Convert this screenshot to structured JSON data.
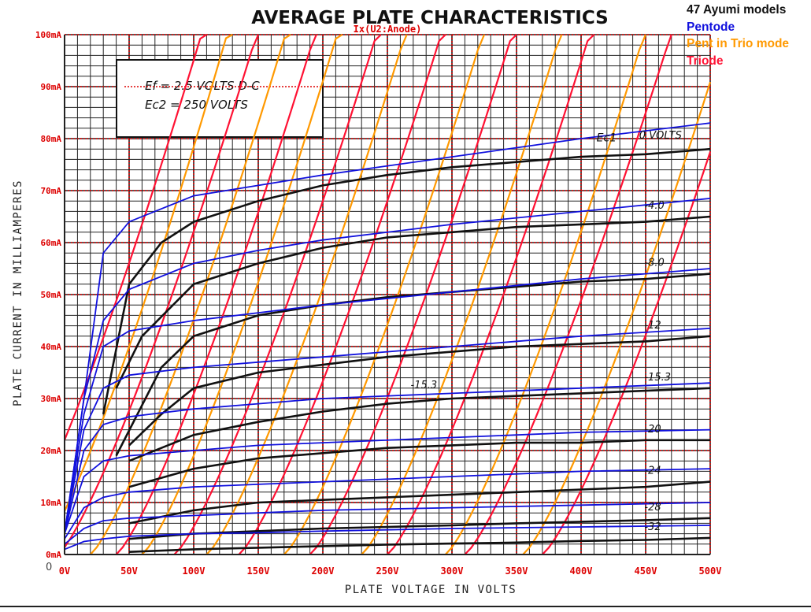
{
  "legend": {
    "title": "47 Ayumi models",
    "items": [
      {
        "label": "Pentode",
        "color": "#1111dd"
      },
      {
        "label": "Pent in Trio mode",
        "color": "#ff9900"
      },
      {
        "label": "Triode",
        "color": "#ff1133"
      }
    ]
  },
  "colors": {
    "grid": "#222222",
    "datasheet": "#111111",
    "sim_axis": "#dd0000"
  },
  "chart_data": {
    "type": "line",
    "title": "AVERAGE PLATE CHARACTERISTICS",
    "subtitle": "Ix(U2:Anode)",
    "xlabel": "PLATE VOLTAGE IN VOLTS",
    "ylabel": "PLATE CURRENT IN MILLIAMPERES",
    "xlim": [
      0,
      500
    ],
    "ylim": [
      0,
      100
    ],
    "x_ticks": [
      "0V",
      "50V",
      "100V",
      "150V",
      "200V",
      "250V",
      "300V",
      "350V",
      "400V",
      "450V",
      "500V"
    ],
    "y_ticks": [
      "0mA",
      "10mA",
      "20mA",
      "30mA",
      "40mA",
      "50mA",
      "60mA",
      "70mA",
      "80mA",
      "90mA",
      "100mA"
    ],
    "origin_label": "0",
    "conditions": [
      "Ef = 2.5 VOLTS D-C",
      "Ec2 = 250 VOLTS"
    ],
    "grid": true,
    "series": [
      {
        "name": "Ec1 = 0 VOLTS",
        "group": "datasheet",
        "label": "0 VOLTS",
        "x": [
          30,
          50,
          75,
          100,
          150,
          200,
          250,
          300,
          350,
          400,
          450,
          500
        ],
        "y": [
          27,
          52,
          60,
          64,
          68,
          71,
          73,
          74.5,
          75.5,
          76.5,
          77,
          78
        ]
      },
      {
        "name": "Ec1 = -4",
        "group": "datasheet",
        "label": "-4.0",
        "x": [
          40,
          60,
          100,
          150,
          200,
          250,
          300,
          350,
          400,
          450,
          500
        ],
        "y": [
          32,
          42,
          52,
          56,
          59,
          61,
          62,
          63,
          63.5,
          64,
          65
        ]
      },
      {
        "name": "Ec1 = -8",
        "group": "datasheet",
        "label": "-8.0",
        "x": [
          40,
          75,
          100,
          150,
          200,
          250,
          300,
          350,
          400,
          450,
          500
        ],
        "y": [
          19,
          36,
          42,
          46,
          48,
          49.5,
          50.5,
          51.5,
          52.5,
          53,
          54
        ]
      },
      {
        "name": "Ec1 = -12",
        "group": "datasheet",
        "label": "-12",
        "x": [
          50,
          75,
          100,
          150,
          200,
          250,
          300,
          350,
          400,
          450,
          500
        ],
        "y": [
          21,
          27,
          32,
          35,
          36.5,
          38,
          39,
          40,
          40.5,
          41,
          42
        ]
      },
      {
        "name": "Ec1 = -15.3",
        "group": "datasheet",
        "label": "-15.3",
        "x": [
          50,
          100,
          150,
          200,
          250,
          300,
          350,
          400,
          450,
          500
        ],
        "y": [
          18,
          23,
          25.5,
          27.5,
          29,
          30,
          30.5,
          31,
          31.5,
          32
        ]
      },
      {
        "name": "Ec1 = -20",
        "group": "datasheet",
        "label": "-20",
        "x": [
          50,
          100,
          150,
          200,
          250,
          300,
          350,
          400,
          450,
          500
        ],
        "y": [
          13,
          16.5,
          18.5,
          19.5,
          20.5,
          21,
          21.5,
          21.5,
          22,
          22
        ]
      },
      {
        "name": "Ec1 = -24",
        "group": "datasheet",
        "label": "-24",
        "x": [
          50,
          100,
          150,
          200,
          250,
          300,
          350,
          400,
          450,
          500
        ],
        "y": [
          6,
          8.5,
          10,
          10.5,
          11,
          11.5,
          12,
          12.5,
          13,
          14
        ]
      },
      {
        "name": "Ec1 = -28",
        "group": "datasheet",
        "label": "-28",
        "x": [
          50,
          100,
          150,
          200,
          250,
          300,
          350,
          400,
          450,
          500
        ],
        "y": [
          3,
          4,
          4.5,
          5,
          5.3,
          5.6,
          6,
          6.3,
          6.6,
          7
        ]
      },
      {
        "name": "Ec1 = -32",
        "group": "datasheet",
        "label": "-32",
        "x": [
          50,
          100,
          150,
          200,
          250,
          300,
          350,
          400,
          450,
          500
        ],
        "y": [
          0.5,
          1,
          1.3,
          1.6,
          1.9,
          2.1,
          2.3,
          2.6,
          2.8,
          3.2
        ]
      },
      {
        "name": "Pentode 0",
        "group": "Pentode",
        "x": [
          0,
          15,
          30,
          50,
          100,
          150,
          200,
          300,
          400,
          500
        ],
        "y": [
          4,
          30,
          58,
          64,
          69,
          71,
          73,
          76.5,
          80,
          83
        ]
      },
      {
        "name": "Pentode -4",
        "group": "Pentode",
        "x": [
          0,
          15,
          30,
          50,
          100,
          150,
          200,
          300,
          400,
          500
        ],
        "y": [
          4,
          30,
          45,
          51,
          56,
          58.5,
          60.5,
          63.5,
          66,
          68.5
        ]
      },
      {
        "name": "Pentode -8",
        "group": "Pentode",
        "x": [
          0,
          15,
          30,
          50,
          100,
          150,
          200,
          300,
          400,
          500
        ],
        "y": [
          4,
          27,
          40,
          43,
          45,
          46.5,
          48,
          50.5,
          53,
          55
        ]
      },
      {
        "name": "Pentode -12",
        "group": "Pentode",
        "x": [
          0,
          15,
          30,
          50,
          100,
          150,
          200,
          300,
          400,
          500
        ],
        "y": [
          4,
          24,
          32,
          34.5,
          36,
          37,
          38,
          40,
          42,
          43.5
        ]
      },
      {
        "name": "Pentode -16",
        "group": "Pentode",
        "x": [
          0,
          15,
          30,
          50,
          100,
          150,
          200,
          300,
          400,
          500
        ],
        "y": [
          4,
          20,
          25,
          26.5,
          28,
          29,
          30,
          31,
          32,
          33
        ]
      },
      {
        "name": "Pentode -20",
        "group": "Pentode",
        "x": [
          0,
          15,
          30,
          50,
          100,
          150,
          200,
          300,
          400,
          500
        ],
        "y": [
          4,
          15,
          18,
          19,
          20,
          21,
          21.5,
          22.5,
          23.5,
          24
        ]
      },
      {
        "name": "Pentode -24",
        "group": "Pentode",
        "x": [
          0,
          15,
          30,
          50,
          100,
          150,
          200,
          300,
          400,
          500
        ],
        "y": [
          3,
          9,
          11,
          12,
          13,
          13.5,
          14,
          15,
          16,
          16.5
        ]
      },
      {
        "name": "Pentode -28",
        "group": "Pentode",
        "x": [
          0,
          15,
          30,
          50,
          100,
          150,
          200,
          300,
          400,
          500
        ],
        "y": [
          2,
          5,
          6.5,
          7,
          7.5,
          8,
          8.5,
          9,
          9.5,
          10
        ]
      },
      {
        "name": "Pentode -32",
        "group": "Pentode",
        "x": [
          0,
          15,
          30,
          50,
          100,
          150,
          200,
          300,
          400,
          500
        ],
        "y": [
          1,
          2.5,
          3,
          3.5,
          4,
          4.2,
          4.5,
          5,
          5.3,
          5.6
        ]
      }
    ],
    "triode_families": [
      {
        "name": "Pent in Trio mode",
        "color": "#ff9900",
        "curves": [
          {
            "offset": -20,
            "slope": 0.47
          },
          {
            "offset": 20,
            "slope": 0.45
          },
          {
            "offset": 60,
            "slope": 0.45
          },
          {
            "offset": 110,
            "slope": 0.44
          },
          {
            "offset": 170,
            "slope": 0.44
          },
          {
            "offset": 230,
            "slope": 0.44
          },
          {
            "offset": 295,
            "slope": 0.44
          },
          {
            "offset": 355,
            "slope": 0.43
          }
        ]
      },
      {
        "name": "Triode",
        "color": "#ff1133",
        "curves": [
          {
            "offset": -45,
            "slope": 0.45
          },
          {
            "offset": -5,
            "slope": 0.44
          },
          {
            "offset": 40,
            "slope": 0.44
          },
          {
            "offset": 85,
            "slope": 0.43
          },
          {
            "offset": 135,
            "slope": 0.43
          },
          {
            "offset": 190,
            "slope": 0.43
          },
          {
            "offset": 250,
            "slope": 0.43
          },
          {
            "offset": 310,
            "slope": 0.42
          },
          {
            "offset": 370,
            "slope": 0.42
          }
        ]
      }
    ]
  }
}
